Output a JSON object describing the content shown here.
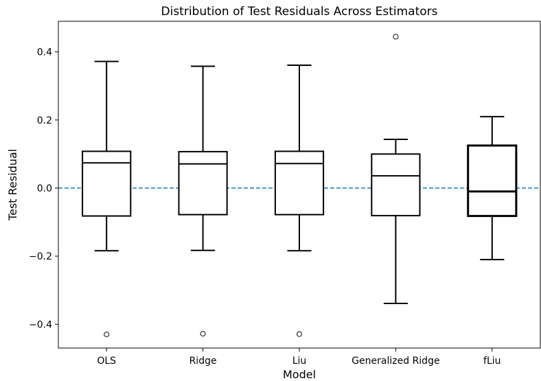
{
  "chart_data": {
    "type": "box",
    "title": "Distribution of Test Residuals Across Estimators",
    "xlabel": "Model",
    "ylabel": "Test Residual",
    "categories": [
      "OLS",
      "Ridge",
      "Liu",
      "Generalized Ridge",
      "fLiu"
    ],
    "ylim": [
      -0.47,
      0.49
    ],
    "yticks": [
      -0.4,
      -0.2,
      0.0,
      0.2,
      0.4
    ],
    "ytick_labels": [
      "−0.4",
      "−0.2",
      "0.0",
      "0.2",
      "0.4"
    ],
    "grid": false,
    "reference_line": {
      "y": 0.0,
      "style": "dashed",
      "color": "#1f77b4"
    },
    "boxes": [
      {
        "label": "OLS",
        "whisker_low": -0.184,
        "q1": -0.082,
        "median": 0.074,
        "q3": 0.108,
        "whisker_high": 0.372,
        "outliers": [
          -0.43
        ],
        "emphasized": false
      },
      {
        "label": "Ridge",
        "whisker_low": -0.183,
        "q1": -0.078,
        "median": 0.071,
        "q3": 0.107,
        "whisker_high": 0.358,
        "outliers": [
          -0.428
        ],
        "emphasized": false
      },
      {
        "label": "Liu",
        "whisker_low": -0.184,
        "q1": -0.078,
        "median": 0.072,
        "q3": 0.108,
        "whisker_high": 0.361,
        "outliers": [
          -0.429
        ],
        "emphasized": false
      },
      {
        "label": "Generalized Ridge",
        "whisker_low": -0.339,
        "q1": -0.081,
        "median": 0.036,
        "q3": 0.1,
        "whisker_high": 0.143,
        "outliers": [
          0.445
        ],
        "emphasized": false
      },
      {
        "label": "fLiu",
        "whisker_low": -0.21,
        "q1": -0.082,
        "median": -0.01,
        "q3": 0.125,
        "whisker_high": 0.21,
        "outliers": [],
        "emphasized": true
      }
    ],
    "colors": {
      "box_edge": "#000000",
      "outlier_edge": "#555555",
      "reference_line": "#1f77b4"
    }
  }
}
